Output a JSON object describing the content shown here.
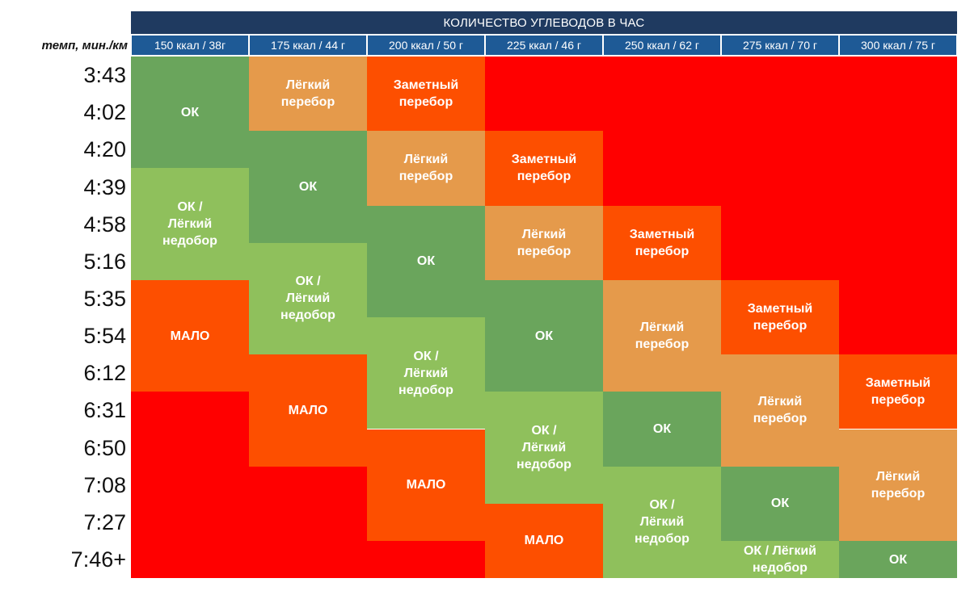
{
  "chart_data": {
    "type": "heatmap",
    "title": "КОЛИЧЕСТВО УГЛЕВОДОВ В ЧАС",
    "ylabel": "темп, мин./км",
    "columns": [
      "150 ккал / 38г",
      "175 ккал / 44 г",
      "200 ккал / 50 г",
      "225 ккал / 46 г",
      "250 ккал / 62 г",
      "275 ккал / 70 г",
      "300 ккал / 75 г"
    ],
    "rows": [
      "3:43",
      "4:02",
      "4:20",
      "4:39",
      "4:58",
      "5:16",
      "5:35",
      "5:54",
      "6:12",
      "6:31",
      "6:50",
      "7:08",
      "7:27",
      "7:46+"
    ],
    "colors": {
      "ok": "#6aa55c",
      "ok_light_under": "#8fc05c",
      "light_over": "#e59a4b",
      "notable_over": "#fd4f00",
      "too_little": "#fd4f00",
      "excess": "#ff0000"
    },
    "blocks": [
      {
        "col": 0,
        "row_start": 0,
        "row_end": 2,
        "category": "ok",
        "text": "ОК"
      },
      {
        "col": 0,
        "row_start": 3,
        "row_end": 5,
        "category": "ok_light_under",
        "text": "ОК /\nЛёгкий\nнедобор"
      },
      {
        "col": 0,
        "row_start": 6,
        "row_end": 8,
        "category": "too_little",
        "text": "МАЛО"
      },
      {
        "col": 0,
        "row_start": 9,
        "row_end": 13,
        "category": "excess",
        "text": ""
      },
      {
        "col": 1,
        "row_start": 0,
        "row_end": 1,
        "category": "light_over",
        "text": "Лёгкий\nперебор"
      },
      {
        "col": 1,
        "row_start": 2,
        "row_end": 4,
        "category": "ok",
        "text": "ОК"
      },
      {
        "col": 1,
        "row_start": 5,
        "row_end": 7,
        "category": "ok_light_under",
        "text": "ОК /\nЛёгкий\nнедобор"
      },
      {
        "col": 1,
        "row_start": 8,
        "row_end": 10,
        "category": "too_little",
        "text": "МАЛО"
      },
      {
        "col": 1,
        "row_start": 11,
        "row_end": 13,
        "category": "excess",
        "text": ""
      },
      {
        "col": 2,
        "row_start": 0,
        "row_end": 1,
        "category": "notable_over",
        "text": "Заметный\nперебор"
      },
      {
        "col": 2,
        "row_start": 2,
        "row_end": 3,
        "category": "light_over",
        "text": "Лёгкий\nперебор"
      },
      {
        "col": 2,
        "row_start": 4,
        "row_end": 6,
        "category": "ok",
        "text": "ОК"
      },
      {
        "col": 2,
        "row_start": 7,
        "row_end": 9,
        "category": "ok_light_under",
        "text": "ОК /\nЛёгкий\nнедобор"
      },
      {
        "col": 2,
        "row_start": 10,
        "row_end": 12,
        "category": "too_little",
        "text": "МАЛО"
      },
      {
        "col": 2,
        "row_start": 13,
        "row_end": 13,
        "category": "excess",
        "text": ""
      },
      {
        "col": 3,
        "row_start": 0,
        "row_end": 1,
        "category": "excess",
        "text": ""
      },
      {
        "col": 3,
        "row_start": 2,
        "row_end": 3,
        "category": "notable_over",
        "text": "Заметный\nперебор"
      },
      {
        "col": 3,
        "row_start": 4,
        "row_end": 5,
        "category": "light_over",
        "text": "Лёгкий\nперебор"
      },
      {
        "col": 3,
        "row_start": 6,
        "row_end": 8,
        "category": "ok",
        "text": "ОК"
      },
      {
        "col": 3,
        "row_start": 9,
        "row_end": 11,
        "category": "ok_light_under",
        "text": "ОК /\nЛёгкий\nнедобор"
      },
      {
        "col": 3,
        "row_start": 12,
        "row_end": 13,
        "category": "too_little",
        "text": "МАЛО"
      },
      {
        "col": 4,
        "row_start": 0,
        "row_end": 3,
        "category": "excess",
        "text": ""
      },
      {
        "col": 4,
        "row_start": 4,
        "row_end": 5,
        "category": "notable_over",
        "text": "Заметный\nперебор"
      },
      {
        "col": 4,
        "row_start": 6,
        "row_end": 8,
        "category": "light_over",
        "text": "Лёгкий\nперебор"
      },
      {
        "col": 4,
        "row_start": 9,
        "row_end": 10,
        "category": "ok",
        "text": "ОК"
      },
      {
        "col": 4,
        "row_start": 11,
        "row_end": 13,
        "category": "ok_light_under",
        "text": "ОК /\nЛёгкий\nнедобор"
      },
      {
        "col": 5,
        "row_start": 0,
        "row_end": 5,
        "category": "excess",
        "text": ""
      },
      {
        "col": 5,
        "row_start": 6,
        "row_end": 7,
        "category": "notable_over",
        "text": "Заметный\nперебор"
      },
      {
        "col": 5,
        "row_start": 8,
        "row_end": 10,
        "category": "light_over",
        "text": "Лёгкий\nперебор"
      },
      {
        "col": 5,
        "row_start": 11,
        "row_end": 12,
        "category": "ok",
        "text": "ОК"
      },
      {
        "col": 5,
        "row_start": 13,
        "row_end": 13,
        "category": "ok_light_under",
        "text": "ОК / Лёгкий\nнедобор"
      },
      {
        "col": 6,
        "row_start": 0,
        "row_end": 7,
        "category": "excess",
        "text": ""
      },
      {
        "col": 6,
        "row_start": 8,
        "row_end": 9,
        "category": "notable_over",
        "text": "Заметный\nперебор"
      },
      {
        "col": 6,
        "row_start": 10,
        "row_end": 12,
        "category": "light_over",
        "text": "Лёгкий\nперебор"
      },
      {
        "col": 6,
        "row_start": 13,
        "row_end": 13,
        "category": "ok",
        "text": "ОК"
      }
    ]
  }
}
